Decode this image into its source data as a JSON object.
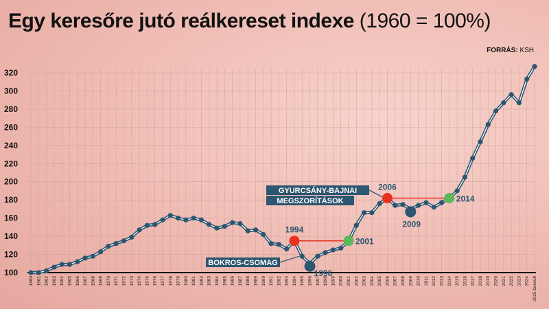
{
  "header": {
    "title_bold": "Egy keresőre jutó reálkereset indexe",
    "title_regular": "(1960 = 100%)",
    "source_label": "FORRÁS:",
    "source_value": "KSH"
  },
  "colors": {
    "line": "#2d5670",
    "austerity_start": "#e8321e",
    "recovery": "#5cb85c"
  },
  "chart_data": {
    "type": "line",
    "title": "Egy keresőre jutó reálkereset indexe (1960 = 100%)",
    "xlabel": "",
    "ylabel": "",
    "ylim": [
      100,
      320
    ],
    "yticks": [
      100,
      120,
      140,
      160,
      180,
      200,
      220,
      240,
      260,
      280,
      300,
      320
    ],
    "grid": true,
    "categories": [
      "1960",
      "1961",
      "1962",
      "1963",
      "1964",
      "1965",
      "1966",
      "1967",
      "1968",
      "1969",
      "1970",
      "1971",
      "1972",
      "1973",
      "1974",
      "1975",
      "1976",
      "1977",
      "1978",
      "1979",
      "1980",
      "1981",
      "1982",
      "1983",
      "1984",
      "1985",
      "1986",
      "1987",
      "1988",
      "1989",
      "1990",
      "1991",
      "1992",
      "1993",
      "1994",
      "1995",
      "1996",
      "1997",
      "1998",
      "1999",
      "2000",
      "2001",
      "2002",
      "2003",
      "2004",
      "2005",
      "2006",
      "2007",
      "2008",
      "2009",
      "2010",
      "2011",
      "2012",
      "2013",
      "2014",
      "2015",
      "2016",
      "2017",
      "2018",
      "2019",
      "2020",
      "2021",
      "2022",
      "2023",
      "2024",
      "2025 becsült"
    ],
    "values": [
      100,
      100,
      102,
      106,
      109,
      109,
      112,
      116,
      118,
      123,
      129,
      132,
      135,
      139,
      147,
      152,
      153,
      158,
      163,
      160,
      158,
      160,
      158,
      153,
      149,
      151,
      155,
      154,
      146,
      147,
      142,
      132,
      131,
      126,
      135,
      118,
      110,
      118,
      122,
      125,
      127,
      135,
      152,
      166,
      166,
      176,
      182,
      174,
      175,
      170,
      174,
      177,
      172,
      177,
      182,
      190,
      205,
      226,
      244,
      263,
      278,
      287,
      296,
      287,
      313,
      327
    ],
    "annotations": [
      {
        "year": "1994",
        "label": "1994",
        "kind": "red"
      },
      {
        "year": "2001",
        "label": "2001",
        "kind": "green"
      },
      {
        "year": "1996",
        "label": "1996",
        "kind": "low"
      },
      {
        "year": "2006",
        "label": "2006",
        "kind": "red"
      },
      {
        "year": "2014",
        "label": "2014",
        "kind": "green"
      },
      {
        "year": "2009",
        "label": "2009",
        "kind": "low"
      }
    ],
    "callouts": [
      {
        "lines": [
          "BOKROS-CSOMAG"
        ],
        "target": "1995"
      },
      {
        "lines": [
          "GYURCSÁNY-BAJNAI",
          "MEGSZORÍTÁSOK"
        ],
        "target": "2006"
      }
    ]
  }
}
